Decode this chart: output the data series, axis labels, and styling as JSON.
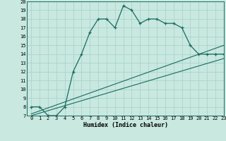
{
  "xlabel": "Humidex (Indice chaleur)",
  "bg_color": "#c8e8e0",
  "grid_color": "#aad4cc",
  "line_color": "#1a6b60",
  "curve_x": [
    0,
    1,
    2,
    3,
    4,
    5,
    6,
    7,
    8,
    9,
    10,
    11,
    12,
    13,
    14,
    15,
    16,
    17,
    18,
    19,
    20,
    21,
    22,
    23
  ],
  "curve_y": [
    8,
    8,
    7,
    7,
    8,
    12,
    14,
    16.5,
    18,
    18,
    17,
    19.5,
    19,
    17.5,
    18,
    18,
    17.5,
    17.5,
    17,
    15,
    14,
    14,
    14,
    14
  ],
  "line1_x": [
    0,
    23
  ],
  "line1_y": [
    7.2,
    15.0
  ],
  "line2_x": [
    0,
    23
  ],
  "line2_y": [
    7.0,
    13.5
  ],
  "ylim": [
    7,
    20
  ],
  "xlim": [
    -0.5,
    23
  ],
  "yticks": [
    7,
    8,
    9,
    10,
    11,
    12,
    13,
    14,
    15,
    16,
    17,
    18,
    19,
    20
  ],
  "xticks": [
    0,
    1,
    2,
    3,
    4,
    5,
    6,
    7,
    8,
    9,
    10,
    11,
    12,
    13,
    14,
    15,
    16,
    17,
    18,
    19,
    20,
    21,
    22,
    23
  ],
  "tick_fontsize": 5.0,
  "xlabel_fontsize": 6.0
}
